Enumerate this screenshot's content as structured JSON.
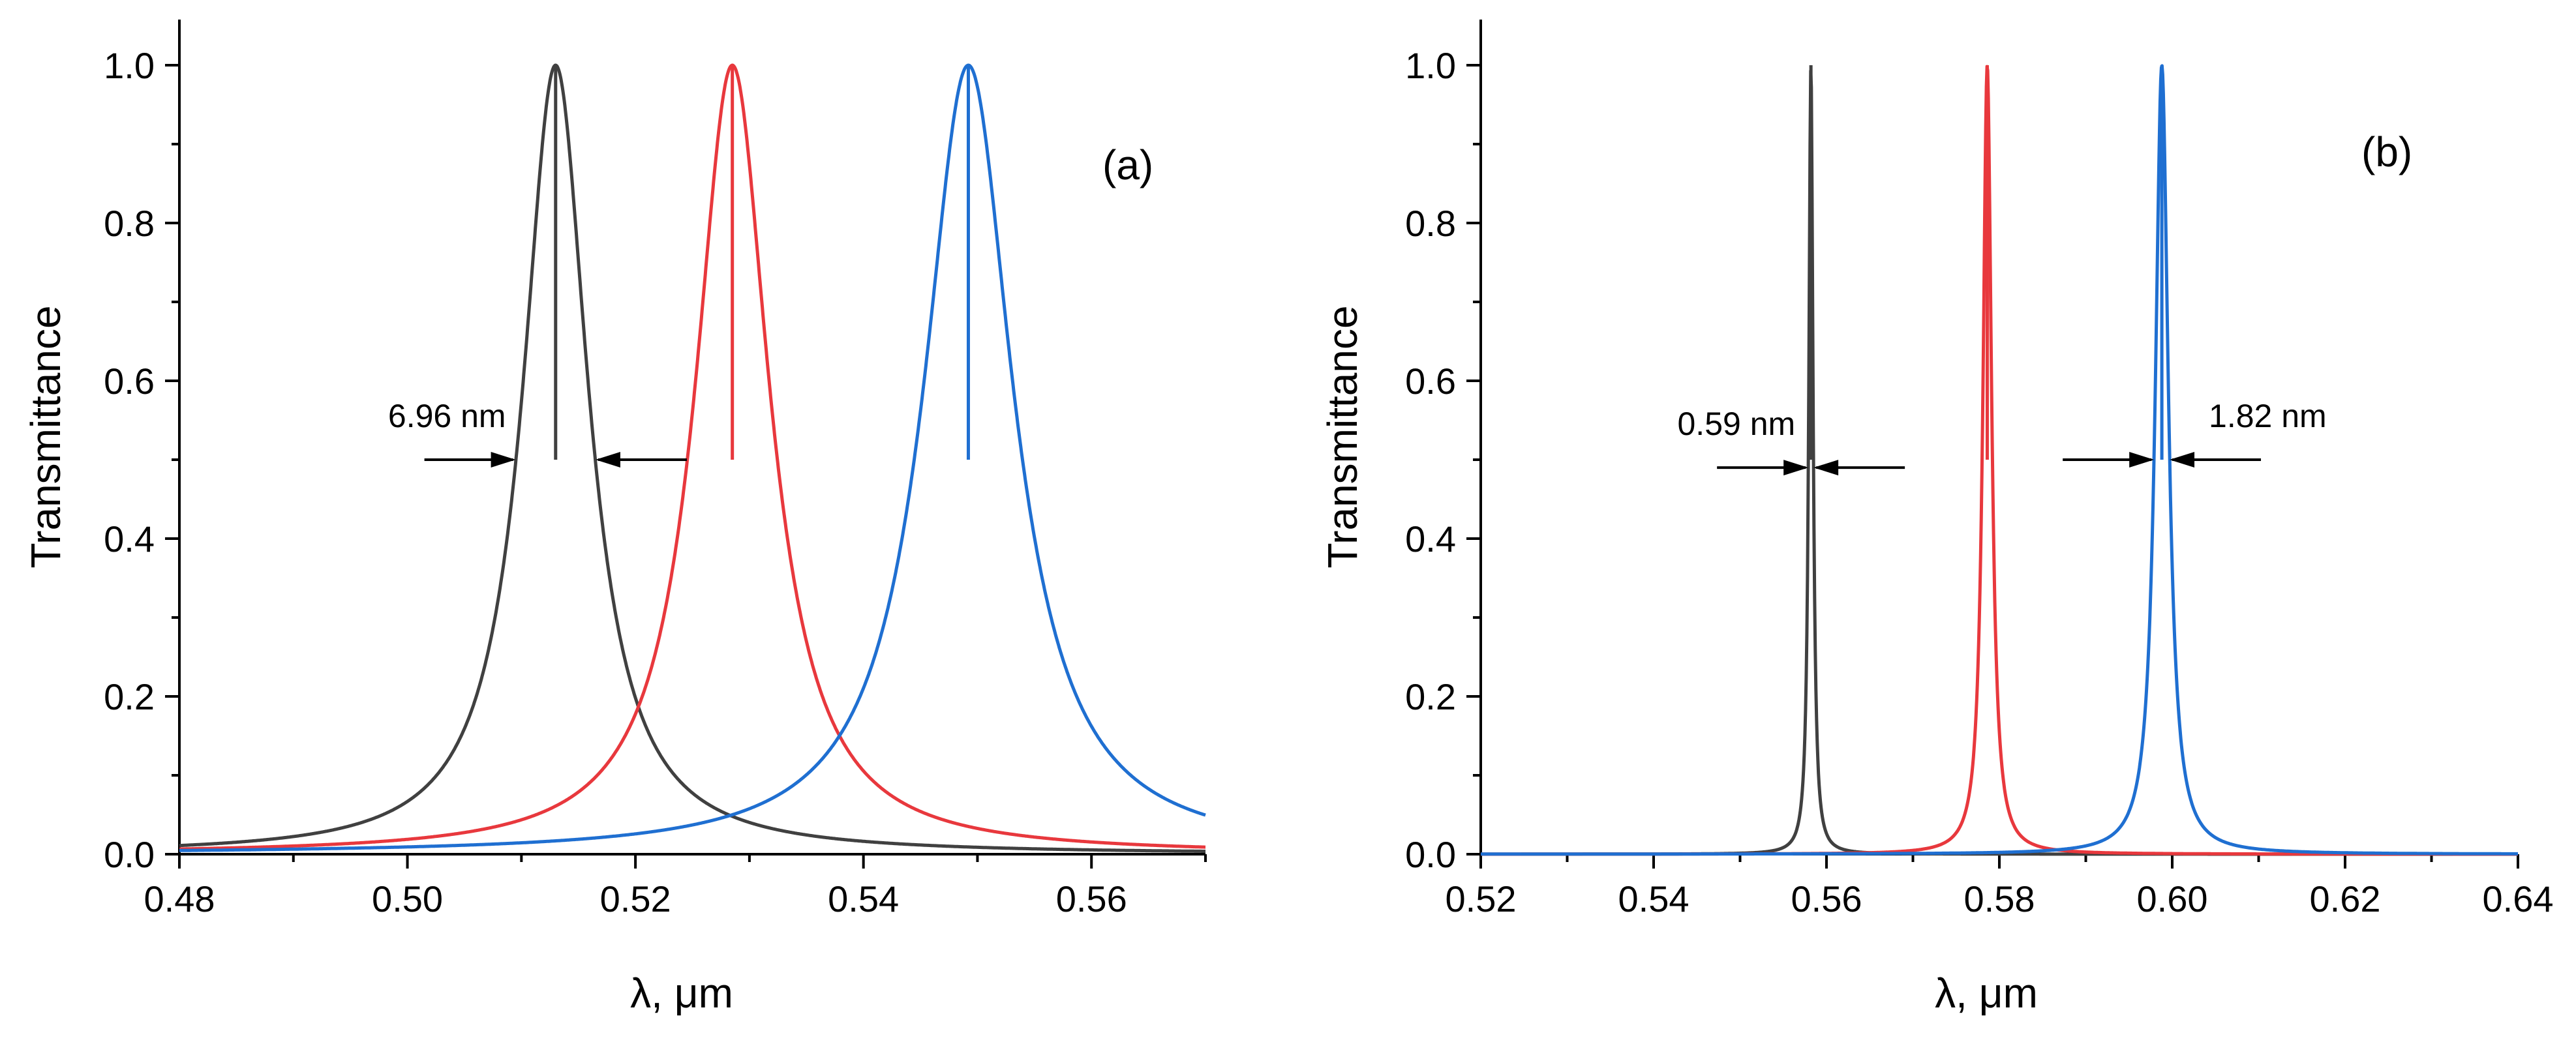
{
  "colors": {
    "black": "#404040",
    "red": "#e8383d",
    "blue": "#1f6fd1"
  },
  "chart_data": [
    {
      "id": "a",
      "type": "line",
      "panel_label": "(a)",
      "xlabel": "λ, μm",
      "ylabel": "Transmittance",
      "xlim": [
        0.48,
        0.57
      ],
      "ylim": [
        0.0,
        1.1
      ],
      "xticks": [
        "0.48",
        "0.50",
        "0.52",
        "0.54",
        "0.56"
      ],
      "yticks": [
        "0.0",
        "0.2",
        "0.4",
        "0.6",
        "0.8",
        "1.0"
      ],
      "series": [
        {
          "color": "#404040",
          "peak": 0.513,
          "fwhm": 0.00696
        },
        {
          "color": "#e8383d",
          "peak": 0.5285,
          "fwhm": 0.0079
        },
        {
          "color": "#1f6fd1",
          "peak": 0.5492,
          "fwhm": 0.0095
        }
      ],
      "annotations": [
        {
          "text": "6.96 nm",
          "y": 0.5,
          "x_left": 0.5095,
          "x_right": 0.5165
        }
      ]
    },
    {
      "id": "b",
      "type": "line",
      "panel_label": "(b)",
      "xlabel": "λ, μm",
      "ylabel": "Transmittance",
      "xlim": [
        0.52,
        0.64
      ],
      "ylim": [
        0.0,
        1.1
      ],
      "xticks": [
        "0.52",
        "0.54",
        "0.56",
        "0.58",
        "0.60",
        "0.62",
        "0.64"
      ],
      "yticks": [
        "0.0",
        "0.2",
        "0.4",
        "0.6",
        "0.8",
        "1.0"
      ],
      "series": [
        {
          "color": "#404040",
          "peak": 0.5582,
          "fwhm": 0.00059
        },
        {
          "color": "#e8383d",
          "peak": 0.5786,
          "fwhm": 0.0012
        },
        {
          "color": "#1f6fd1",
          "peak": 0.5988,
          "fwhm": 0.00182
        }
      ],
      "annotations": [
        {
          "text": "0.59 nm",
          "y": 0.49,
          "x_left": 0.5579,
          "x_right": 0.5585
        },
        {
          "text": "1.82 nm",
          "y": 0.5,
          "x_left": 0.5979,
          "x_right": 0.5997
        }
      ]
    }
  ]
}
